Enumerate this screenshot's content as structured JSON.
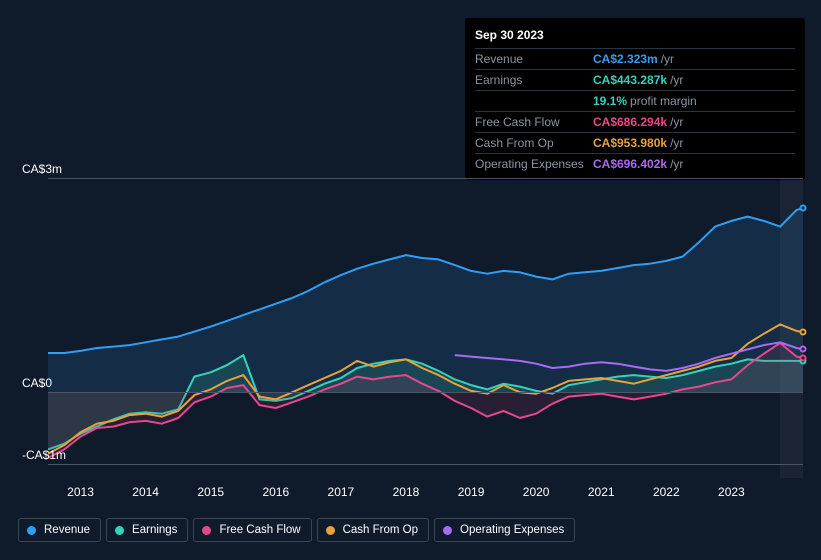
{
  "tooltip": {
    "date": "Sep 30 2023",
    "rows": [
      {
        "label": "Revenue",
        "value": "CA$2.323m",
        "color": "#2f9ff5",
        "suffix": "/yr"
      },
      {
        "label": "Earnings",
        "value": "CA$443.287k",
        "color": "#34d3b8",
        "suffix": "/yr"
      },
      {
        "label": "",
        "value": "19.1%",
        "color": "#34d3b8",
        "suffix": "profit margin"
      },
      {
        "label": "Free Cash Flow",
        "value": "CA$686.294k",
        "color": "#e8488b",
        "suffix": "/yr"
      },
      {
        "label": "Cash From Op",
        "value": "CA$953.980k",
        "color": "#e8a23c",
        "suffix": "/yr"
      },
      {
        "label": "Operating Expenses",
        "value": "CA$696.402k",
        "color": "#a96af2",
        "suffix": "/yr"
      }
    ]
  },
  "chart": {
    "type": "line",
    "background_color": "#0f1a2b",
    "grid_color": "#4a5568",
    "text_color": "#ffffff",
    "ymin": -1.2,
    "ymax": 3.0,
    "y_ticks": [
      {
        "value": 3.0,
        "label": "CA$3m"
      },
      {
        "value": 0.0,
        "label": "CA$0"
      },
      {
        "value": -1.0,
        "label": "-CA$1m"
      }
    ],
    "xmin": 2012.5,
    "xmax": 2024.1,
    "x_ticks": [
      2013,
      2014,
      2015,
      2016,
      2017,
      2018,
      2019,
      2020,
      2021,
      2022,
      2023
    ],
    "forecast_start_x": 2023.75,
    "line_width": 2,
    "series": [
      {
        "name": "Revenue",
        "color": "#2f9ff5",
        "fill_opacity": 0.18,
        "fill_color": "#2f7fbf",
        "points": [
          [
            2012.5,
            0.55
          ],
          [
            2012.75,
            0.55
          ],
          [
            2013,
            0.58
          ],
          [
            2013.25,
            0.62
          ],
          [
            2013.5,
            0.64
          ],
          [
            2013.75,
            0.66
          ],
          [
            2014,
            0.7
          ],
          [
            2014.25,
            0.74
          ],
          [
            2014.5,
            0.78
          ],
          [
            2014.75,
            0.85
          ],
          [
            2015,
            0.92
          ],
          [
            2015.25,
            1.0
          ],
          [
            2015.5,
            1.08
          ],
          [
            2015.75,
            1.16
          ],
          [
            2016,
            1.24
          ],
          [
            2016.25,
            1.32
          ],
          [
            2016.5,
            1.42
          ],
          [
            2016.75,
            1.54
          ],
          [
            2017,
            1.64
          ],
          [
            2017.25,
            1.73
          ],
          [
            2017.5,
            1.8
          ],
          [
            2017.75,
            1.86
          ],
          [
            2018,
            1.92
          ],
          [
            2018.25,
            1.88
          ],
          [
            2018.5,
            1.86
          ],
          [
            2018.75,
            1.78
          ],
          [
            2019,
            1.7
          ],
          [
            2019.25,
            1.66
          ],
          [
            2019.5,
            1.7
          ],
          [
            2019.75,
            1.68
          ],
          [
            2020,
            1.62
          ],
          [
            2020.25,
            1.58
          ],
          [
            2020.5,
            1.66
          ],
          [
            2020.75,
            1.68
          ],
          [
            2021,
            1.7
          ],
          [
            2021.25,
            1.74
          ],
          [
            2021.5,
            1.78
          ],
          [
            2021.75,
            1.8
          ],
          [
            2022,
            1.84
          ],
          [
            2022.25,
            1.9
          ],
          [
            2022.5,
            2.1
          ],
          [
            2022.75,
            2.32
          ],
          [
            2023,
            2.4
          ],
          [
            2023.25,
            2.46
          ],
          [
            2023.5,
            2.4
          ],
          [
            2023.75,
            2.32
          ],
          [
            2024.0,
            2.55
          ],
          [
            2024.1,
            2.58
          ]
        ]
      },
      {
        "name": "Earnings",
        "color": "#34d3b8",
        "fill_opacity": 0.2,
        "fill_color": "#2fa890",
        "points": [
          [
            2012.5,
            -0.8
          ],
          [
            2012.75,
            -0.72
          ],
          [
            2013,
            -0.58
          ],
          [
            2013.25,
            -0.48
          ],
          [
            2013.5,
            -0.38
          ],
          [
            2013.75,
            -0.3
          ],
          [
            2014,
            -0.28
          ],
          [
            2014.25,
            -0.3
          ],
          [
            2014.5,
            -0.24
          ],
          [
            2014.75,
            0.22
          ],
          [
            2015,
            0.28
          ],
          [
            2015.25,
            0.38
          ],
          [
            2015.5,
            0.52
          ],
          [
            2015.75,
            -0.1
          ],
          [
            2016,
            -0.12
          ],
          [
            2016.25,
            -0.08
          ],
          [
            2016.5,
            0.02
          ],
          [
            2016.75,
            0.12
          ],
          [
            2017,
            0.2
          ],
          [
            2017.25,
            0.34
          ],
          [
            2017.5,
            0.4
          ],
          [
            2017.75,
            0.44
          ],
          [
            2018,
            0.46
          ],
          [
            2018.25,
            0.4
          ],
          [
            2018.5,
            0.3
          ],
          [
            2018.75,
            0.18
          ],
          [
            2019,
            0.1
          ],
          [
            2019.25,
            0.04
          ],
          [
            2019.5,
            0.12
          ],
          [
            2019.75,
            0.08
          ],
          [
            2020,
            0.02
          ],
          [
            2020.25,
            -0.02
          ],
          [
            2020.5,
            0.1
          ],
          [
            2020.75,
            0.14
          ],
          [
            2021,
            0.18
          ],
          [
            2021.25,
            0.22
          ],
          [
            2021.5,
            0.24
          ],
          [
            2021.75,
            0.22
          ],
          [
            2022,
            0.2
          ],
          [
            2022.25,
            0.24
          ],
          [
            2022.5,
            0.3
          ],
          [
            2022.75,
            0.36
          ],
          [
            2023,
            0.4
          ],
          [
            2023.25,
            0.46
          ],
          [
            2023.5,
            0.44
          ],
          [
            2023.75,
            0.44
          ],
          [
            2024.0,
            0.44
          ],
          [
            2024.1,
            0.44
          ]
        ]
      },
      {
        "name": "Free Cash Flow",
        "color": "#e8488b",
        "fill_opacity": 0.16,
        "fill_color": "#b03c68",
        "points": [
          [
            2012.5,
            -0.92
          ],
          [
            2012.75,
            -0.8
          ],
          [
            2013,
            -0.62
          ],
          [
            2013.25,
            -0.5
          ],
          [
            2013.5,
            -0.48
          ],
          [
            2013.75,
            -0.42
          ],
          [
            2014,
            -0.4
          ],
          [
            2014.25,
            -0.44
          ],
          [
            2014.5,
            -0.36
          ],
          [
            2014.75,
            -0.14
          ],
          [
            2015,
            -0.06
          ],
          [
            2015.25,
            0.06
          ],
          [
            2015.5,
            0.1
          ],
          [
            2015.75,
            -0.18
          ],
          [
            2016,
            -0.22
          ],
          [
            2016.25,
            -0.14
          ],
          [
            2016.5,
            -0.06
          ],
          [
            2016.75,
            0.04
          ],
          [
            2017,
            0.12
          ],
          [
            2017.25,
            0.22
          ],
          [
            2017.5,
            0.18
          ],
          [
            2017.75,
            0.22
          ],
          [
            2018,
            0.24
          ],
          [
            2018.25,
            0.12
          ],
          [
            2018.5,
            0.02
          ],
          [
            2018.75,
            -0.12
          ],
          [
            2019,
            -0.22
          ],
          [
            2019.25,
            -0.34
          ],
          [
            2019.5,
            -0.26
          ],
          [
            2019.75,
            -0.36
          ],
          [
            2020,
            -0.3
          ],
          [
            2020.25,
            -0.16
          ],
          [
            2020.5,
            -0.06
          ],
          [
            2020.75,
            -0.04
          ],
          [
            2021,
            -0.02
          ],
          [
            2021.25,
            -0.06
          ],
          [
            2021.5,
            -0.1
          ],
          [
            2021.75,
            -0.06
          ],
          [
            2022,
            -0.02
          ],
          [
            2022.25,
            0.04
          ],
          [
            2022.5,
            0.08
          ],
          [
            2022.75,
            0.14
          ],
          [
            2023,
            0.18
          ],
          [
            2023.25,
            0.38
          ],
          [
            2023.5,
            0.54
          ],
          [
            2023.75,
            0.69
          ],
          [
            2024.0,
            0.5
          ],
          [
            2024.1,
            0.48
          ]
        ]
      },
      {
        "name": "Cash From Op",
        "color": "#e8a23c",
        "fill_opacity": 0.0,
        "fill_color": "#e8a23c",
        "points": [
          [
            2012.5,
            -0.86
          ],
          [
            2012.75,
            -0.74
          ],
          [
            2013,
            -0.56
          ],
          [
            2013.25,
            -0.44
          ],
          [
            2013.5,
            -0.4
          ],
          [
            2013.75,
            -0.32
          ],
          [
            2014,
            -0.3
          ],
          [
            2014.25,
            -0.34
          ],
          [
            2014.5,
            -0.26
          ],
          [
            2014.75,
            -0.04
          ],
          [
            2015,
            0.04
          ],
          [
            2015.25,
            0.16
          ],
          [
            2015.5,
            0.24
          ],
          [
            2015.75,
            -0.06
          ],
          [
            2016,
            -0.1
          ],
          [
            2016.25,
            0.0
          ],
          [
            2016.5,
            0.1
          ],
          [
            2016.75,
            0.2
          ],
          [
            2017,
            0.3
          ],
          [
            2017.25,
            0.44
          ],
          [
            2017.5,
            0.36
          ],
          [
            2017.75,
            0.42
          ],
          [
            2018,
            0.46
          ],
          [
            2018.25,
            0.34
          ],
          [
            2018.5,
            0.24
          ],
          [
            2018.75,
            0.12
          ],
          [
            2019,
            0.02
          ],
          [
            2019.25,
            -0.02
          ],
          [
            2019.5,
            0.1
          ],
          [
            2019.75,
            0.0
          ],
          [
            2020,
            -0.02
          ],
          [
            2020.25,
            0.06
          ],
          [
            2020.5,
            0.16
          ],
          [
            2020.75,
            0.18
          ],
          [
            2021,
            0.2
          ],
          [
            2021.25,
            0.16
          ],
          [
            2021.5,
            0.12
          ],
          [
            2021.75,
            0.18
          ],
          [
            2022,
            0.24
          ],
          [
            2022.25,
            0.3
          ],
          [
            2022.5,
            0.36
          ],
          [
            2022.75,
            0.44
          ],
          [
            2023,
            0.48
          ],
          [
            2023.25,
            0.68
          ],
          [
            2023.5,
            0.82
          ],
          [
            2023.75,
            0.95
          ],
          [
            2024.0,
            0.86
          ],
          [
            2024.1,
            0.84
          ]
        ]
      },
      {
        "name": "Operating Expenses",
        "color": "#a96af2",
        "fill_opacity": 0.0,
        "fill_color": "#a96af2",
        "start_x": 2018.75,
        "points": [
          [
            2018.75,
            0.52
          ],
          [
            2019,
            0.5
          ],
          [
            2019.25,
            0.48
          ],
          [
            2019.5,
            0.46
          ],
          [
            2019.75,
            0.44
          ],
          [
            2020,
            0.4
          ],
          [
            2020.25,
            0.34
          ],
          [
            2020.5,
            0.36
          ],
          [
            2020.75,
            0.4
          ],
          [
            2021,
            0.42
          ],
          [
            2021.25,
            0.4
          ],
          [
            2021.5,
            0.36
          ],
          [
            2021.75,
            0.32
          ],
          [
            2022,
            0.3
          ],
          [
            2022.25,
            0.34
          ],
          [
            2022.5,
            0.4
          ],
          [
            2022.75,
            0.48
          ],
          [
            2023,
            0.54
          ],
          [
            2023.25,
            0.6
          ],
          [
            2023.5,
            0.66
          ],
          [
            2023.75,
            0.7
          ],
          [
            2024.0,
            0.62
          ],
          [
            2024.1,
            0.6
          ]
        ]
      }
    ]
  },
  "legend": [
    {
      "label": "Revenue",
      "color": "#2f9ff5"
    },
    {
      "label": "Earnings",
      "color": "#34d3b8"
    },
    {
      "label": "Free Cash Flow",
      "color": "#e8488b"
    },
    {
      "label": "Cash From Op",
      "color": "#e8a23c"
    },
    {
      "label": "Operating Expenses",
      "color": "#a96af2"
    }
  ]
}
